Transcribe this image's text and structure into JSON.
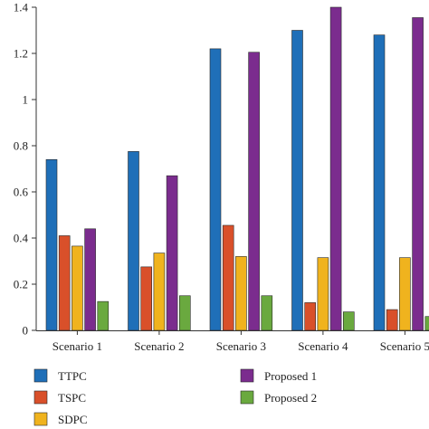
{
  "chart_data": {
    "type": "bar",
    "title": "",
    "xlabel": "",
    "ylabel": "",
    "ylim": [
      0,
      1.4
    ],
    "yticks": [
      {
        "value": 0,
        "label": "0"
      },
      {
        "value": 0.2,
        "label": "0.2"
      },
      {
        "value": 0.4,
        "label": "0.4"
      },
      {
        "value": 0.6,
        "label": "0.6"
      },
      {
        "value": 0.8,
        "label": "0.8"
      },
      {
        "value": 1,
        "label": "1"
      },
      {
        "value": 1.2,
        "label": "1.2"
      },
      {
        "value": 1.4,
        "label": "1.4"
      }
    ],
    "categories": [
      "Scenario 1",
      "Scenario 2",
      "Scenario 3",
      "Scenario 4",
      "Scenario 5"
    ],
    "series": [
      {
        "name": "TTPC",
        "color": "#1f6fb8",
        "values": [
          0.74,
          0.775,
          1.22,
          1.3,
          1.28
        ]
      },
      {
        "name": "TSPC",
        "color": "#d9502a",
        "values": [
          0.41,
          0.275,
          0.455,
          0.12,
          0.09
        ]
      },
      {
        "name": "SDPC",
        "color": "#f0b31e",
        "values": [
          0.365,
          0.335,
          0.32,
          0.315,
          0.315
        ]
      },
      {
        "name": "Proposed 1",
        "color": "#7b2c8e",
        "values": [
          0.44,
          0.67,
          1.205,
          1.4,
          1.355
        ]
      },
      {
        "name": "Proposed 2",
        "color": "#6aa93f",
        "values": [
          0.125,
          0.15,
          0.15,
          0.08,
          0.06
        ]
      }
    ],
    "grid": false,
    "legend": "bottom"
  }
}
